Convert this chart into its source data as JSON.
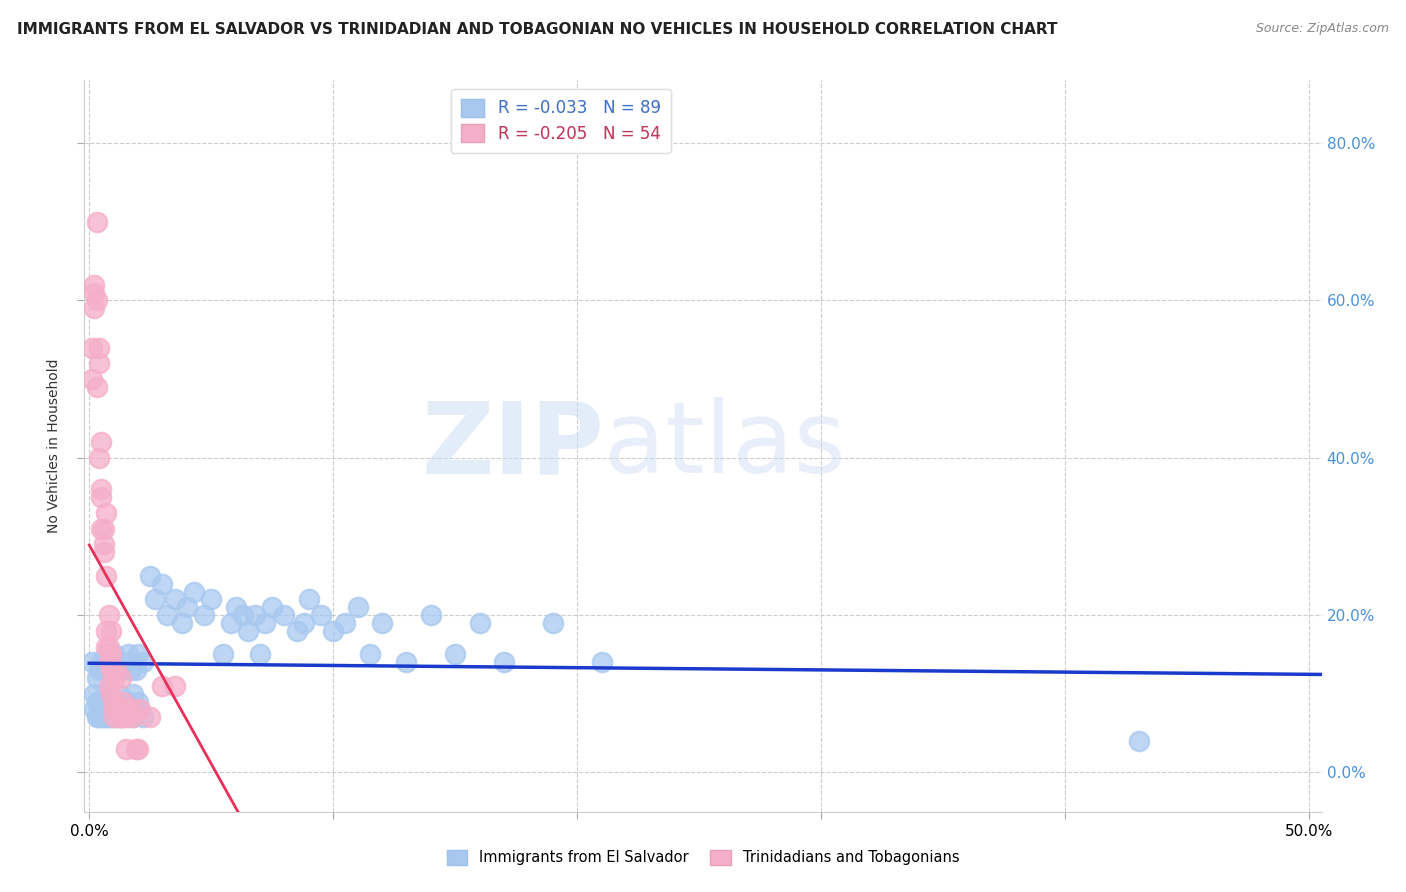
{
  "title": "IMMIGRANTS FROM EL SALVADOR VS TRINIDADIAN AND TOBAGONIAN NO VEHICLES IN HOUSEHOLD CORRELATION CHART",
  "source": "Source: ZipAtlas.com",
  "ylabel": "No Vehicles in Household",
  "yticks_labels": [
    "0.0%",
    "20.0%",
    "40.0%",
    "60.0%",
    "80.0%"
  ],
  "ytick_vals": [
    0.0,
    0.2,
    0.4,
    0.6,
    0.8
  ],
  "xtick_vals": [
    0.0,
    0.1,
    0.2,
    0.3,
    0.4,
    0.5
  ],
  "xlim": [
    -0.002,
    0.505
  ],
  "ylim": [
    -0.05,
    0.88
  ],
  "legend_blue_r": "-0.033",
  "legend_blue_n": "89",
  "legend_pink_r": "-0.205",
  "legend_pink_n": "54",
  "legend_blue_scatter_label": "Immigrants from El Salvador",
  "legend_pink_scatter_label": "Trinidadians and Tobagonians",
  "blue_color": "#a8c8f0",
  "pink_color": "#f5aec8",
  "blue_line_color": "#1a3acc",
  "pink_line_color": "#e8305a",
  "blue_R": -0.033,
  "pink_R": -0.205,
  "watermark_zip": "ZIP",
  "watermark_atlas": "atlas",
  "background_color": "#ffffff",
  "blue_scatter": [
    [
      0.001,
      0.14
    ],
    [
      0.002,
      0.1
    ],
    [
      0.002,
      0.08
    ],
    [
      0.003,
      0.12
    ],
    [
      0.003,
      0.07
    ],
    [
      0.003,
      0.09
    ],
    [
      0.004,
      0.13
    ],
    [
      0.004,
      0.08
    ],
    [
      0.004,
      0.07
    ],
    [
      0.005,
      0.14
    ],
    [
      0.005,
      0.09
    ],
    [
      0.005,
      0.07
    ],
    [
      0.006,
      0.13
    ],
    [
      0.006,
      0.08
    ],
    [
      0.006,
      0.07
    ],
    [
      0.007,
      0.15
    ],
    [
      0.007,
      0.1
    ],
    [
      0.007,
      0.08
    ],
    [
      0.007,
      0.07
    ],
    [
      0.008,
      0.14
    ],
    [
      0.008,
      0.09
    ],
    [
      0.008,
      0.07
    ],
    [
      0.009,
      0.13
    ],
    [
      0.009,
      0.08
    ],
    [
      0.009,
      0.07
    ],
    [
      0.01,
      0.15
    ],
    [
      0.01,
      0.09
    ],
    [
      0.01,
      0.07
    ],
    [
      0.011,
      0.13
    ],
    [
      0.011,
      0.08
    ],
    [
      0.012,
      0.1
    ],
    [
      0.012,
      0.07
    ],
    [
      0.013,
      0.13
    ],
    [
      0.013,
      0.08
    ],
    [
      0.014,
      0.09
    ],
    [
      0.014,
      0.07
    ],
    [
      0.015,
      0.14
    ],
    [
      0.015,
      0.08
    ],
    [
      0.016,
      0.15
    ],
    [
      0.016,
      0.09
    ],
    [
      0.017,
      0.13
    ],
    [
      0.017,
      0.08
    ],
    [
      0.018,
      0.1
    ],
    [
      0.018,
      0.07
    ],
    [
      0.019,
      0.13
    ],
    [
      0.019,
      0.08
    ],
    [
      0.02,
      0.15
    ],
    [
      0.02,
      0.09
    ],
    [
      0.022,
      0.14
    ],
    [
      0.022,
      0.07
    ],
    [
      0.025,
      0.25
    ],
    [
      0.027,
      0.22
    ],
    [
      0.03,
      0.24
    ],
    [
      0.032,
      0.2
    ],
    [
      0.035,
      0.22
    ],
    [
      0.038,
      0.19
    ],
    [
      0.04,
      0.21
    ],
    [
      0.043,
      0.23
    ],
    [
      0.047,
      0.2
    ],
    [
      0.05,
      0.22
    ],
    [
      0.055,
      0.15
    ],
    [
      0.058,
      0.19
    ],
    [
      0.06,
      0.21
    ],
    [
      0.063,
      0.2
    ],
    [
      0.065,
      0.18
    ],
    [
      0.068,
      0.2
    ],
    [
      0.07,
      0.15
    ],
    [
      0.072,
      0.19
    ],
    [
      0.075,
      0.21
    ],
    [
      0.08,
      0.2
    ],
    [
      0.085,
      0.18
    ],
    [
      0.088,
      0.19
    ],
    [
      0.09,
      0.22
    ],
    [
      0.095,
      0.2
    ],
    [
      0.1,
      0.18
    ],
    [
      0.105,
      0.19
    ],
    [
      0.11,
      0.21
    ],
    [
      0.115,
      0.15
    ],
    [
      0.12,
      0.19
    ],
    [
      0.13,
      0.14
    ],
    [
      0.14,
      0.2
    ],
    [
      0.15,
      0.15
    ],
    [
      0.16,
      0.19
    ],
    [
      0.17,
      0.14
    ],
    [
      0.19,
      0.19
    ],
    [
      0.21,
      0.14
    ],
    [
      0.43,
      0.04
    ]
  ],
  "pink_scatter": [
    [
      0.001,
      0.5
    ],
    [
      0.001,
      0.54
    ],
    [
      0.002,
      0.62
    ],
    [
      0.002,
      0.61
    ],
    [
      0.002,
      0.59
    ],
    [
      0.003,
      0.7
    ],
    [
      0.003,
      0.49
    ],
    [
      0.003,
      0.6
    ],
    [
      0.004,
      0.52
    ],
    [
      0.004,
      0.4
    ],
    [
      0.004,
      0.54
    ],
    [
      0.005,
      0.36
    ],
    [
      0.005,
      0.42
    ],
    [
      0.005,
      0.35
    ],
    [
      0.005,
      0.31
    ],
    [
      0.006,
      0.29
    ],
    [
      0.006,
      0.28
    ],
    [
      0.006,
      0.31
    ],
    [
      0.007,
      0.33
    ],
    [
      0.007,
      0.25
    ],
    [
      0.007,
      0.18
    ],
    [
      0.007,
      0.16
    ],
    [
      0.008,
      0.2
    ],
    [
      0.008,
      0.16
    ],
    [
      0.008,
      0.14
    ],
    [
      0.008,
      0.11
    ],
    [
      0.009,
      0.13
    ],
    [
      0.009,
      0.18
    ],
    [
      0.009,
      0.15
    ],
    [
      0.009,
      0.1
    ],
    [
      0.01,
      0.12
    ],
    [
      0.01,
      0.09
    ],
    [
      0.01,
      0.08
    ],
    [
      0.01,
      0.07
    ],
    [
      0.011,
      0.13
    ],
    [
      0.011,
      0.08
    ],
    [
      0.012,
      0.08
    ],
    [
      0.012,
      0.07
    ],
    [
      0.013,
      0.12
    ],
    [
      0.013,
      0.07
    ],
    [
      0.014,
      0.09
    ],
    [
      0.014,
      0.07
    ],
    [
      0.015,
      0.08
    ],
    [
      0.015,
      0.03
    ],
    [
      0.016,
      0.07
    ],
    [
      0.017,
      0.08
    ],
    [
      0.018,
      0.07
    ],
    [
      0.019,
      0.03
    ],
    [
      0.02,
      0.03
    ],
    [
      0.021,
      0.08
    ],
    [
      0.025,
      0.07
    ],
    [
      0.03,
      0.11
    ],
    [
      0.035,
      0.11
    ]
  ]
}
